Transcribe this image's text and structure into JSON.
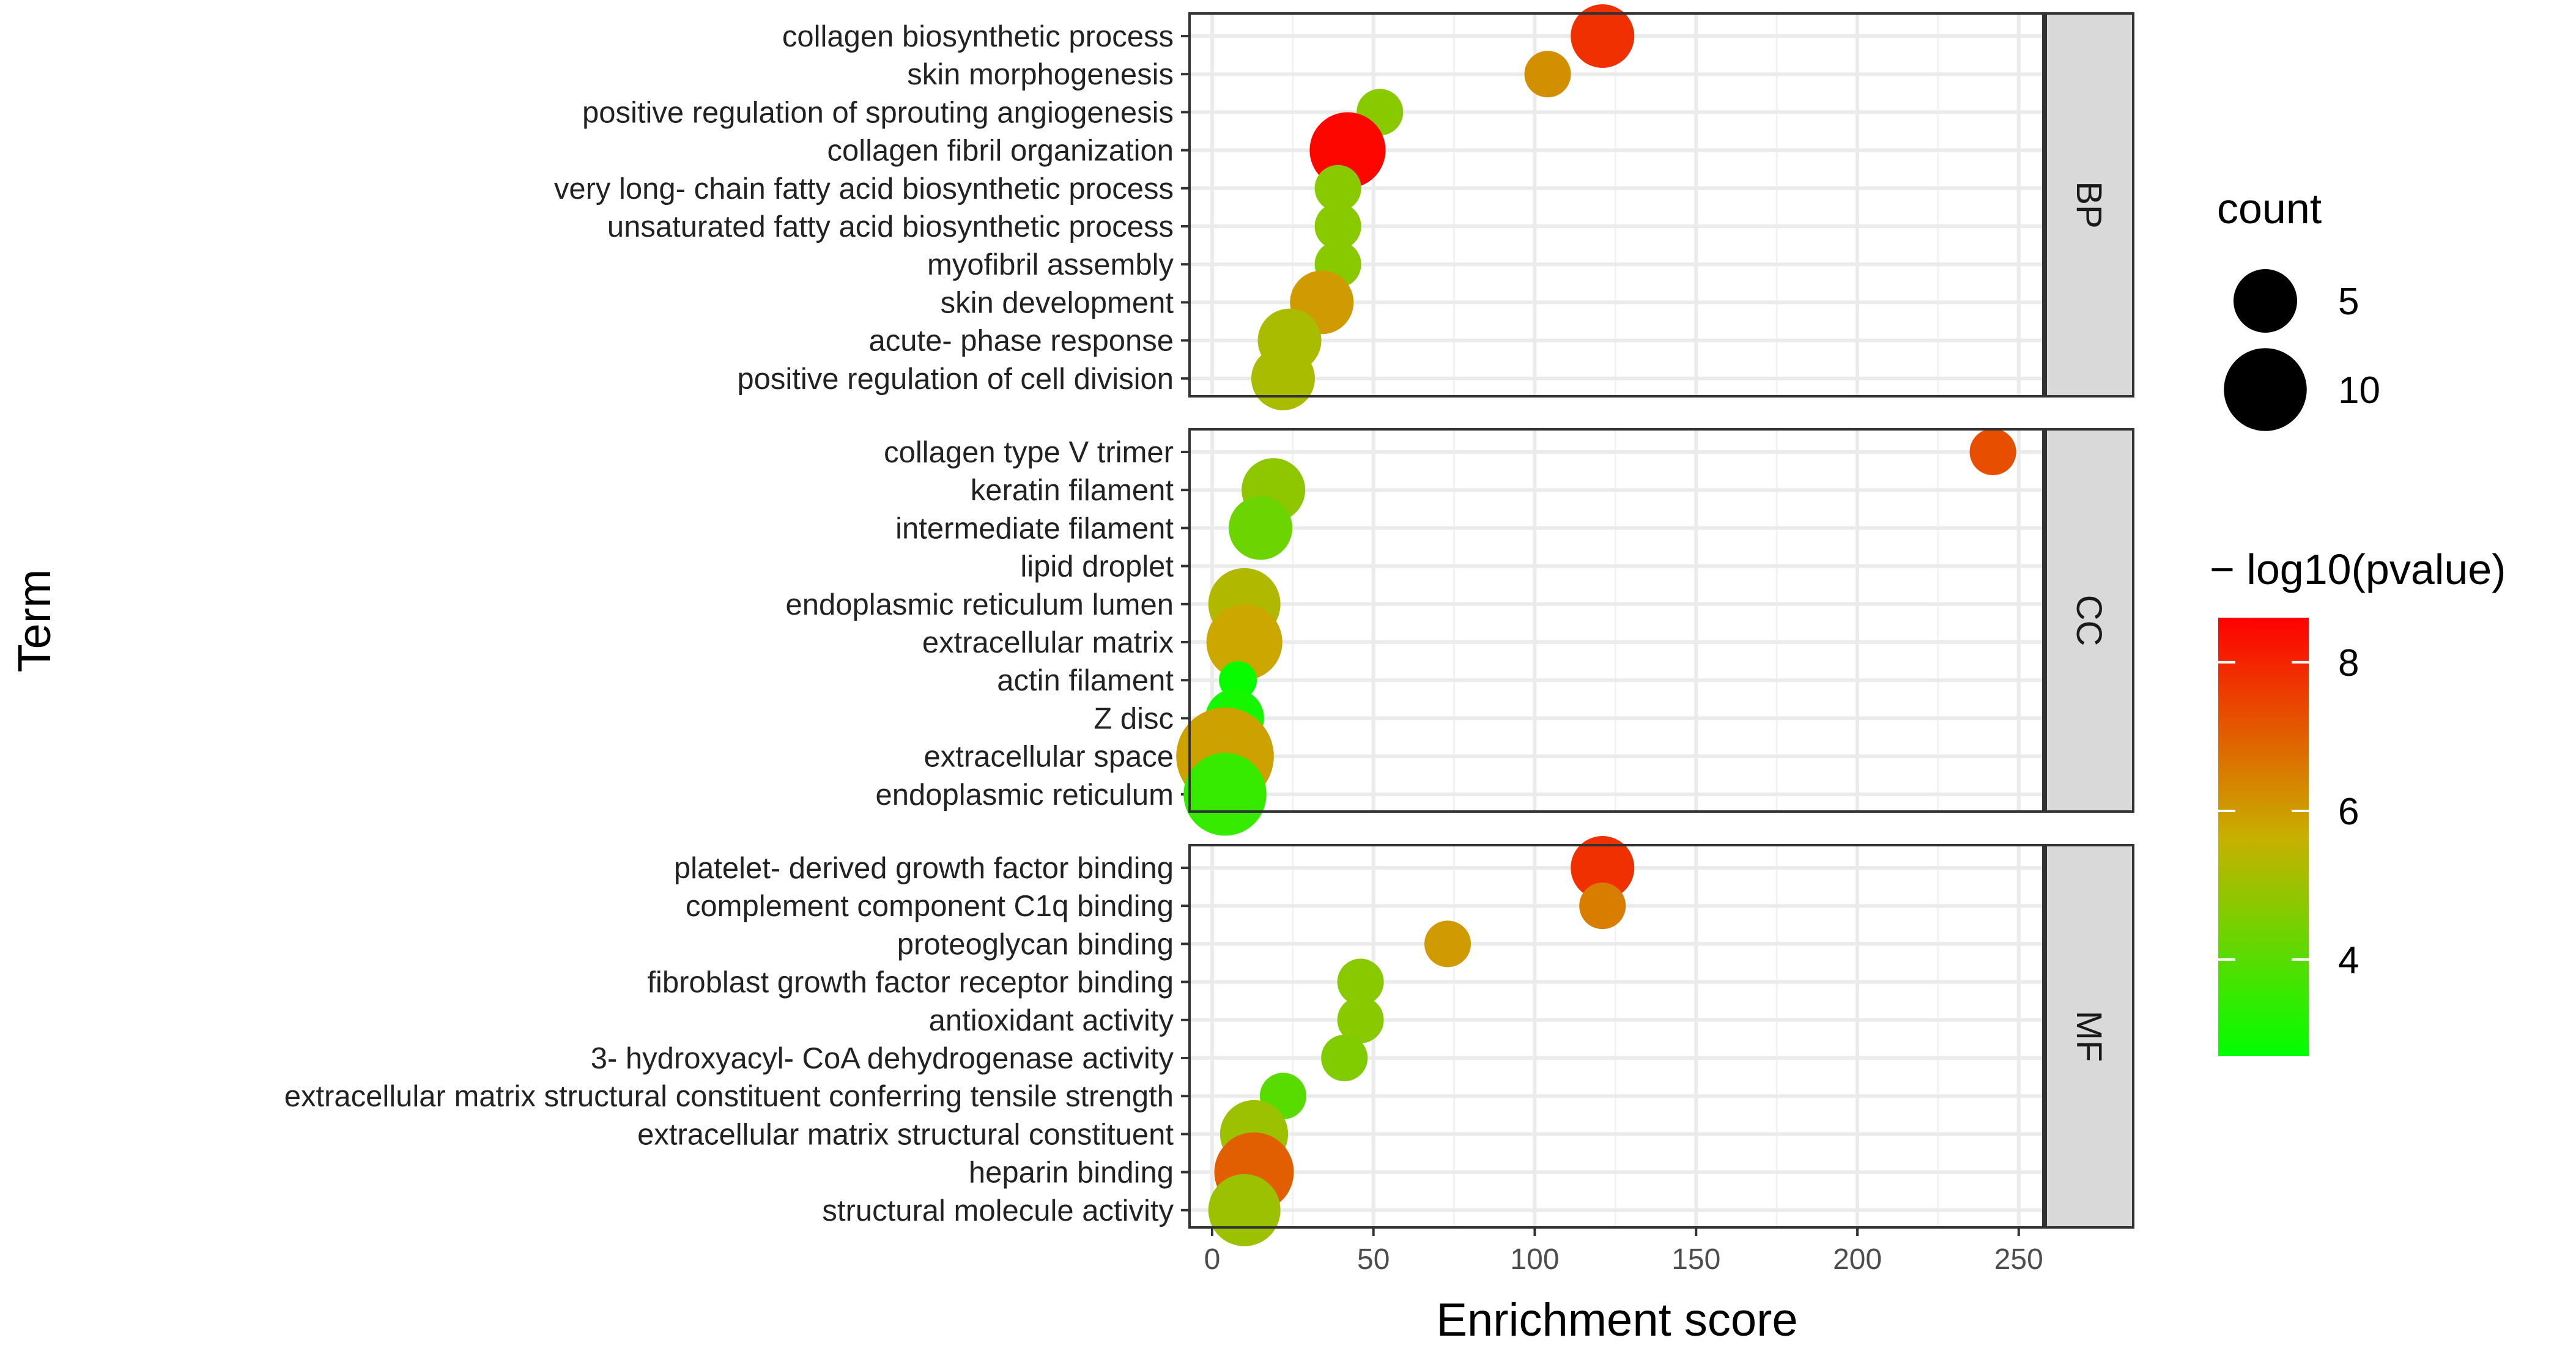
{
  "chart_data": {
    "type": "scatter",
    "xlabel": "Enrichment score",
    "ylabel": "Term",
    "xlim": [
      -7,
      258
    ],
    "x_ticks": [
      0,
      50,
      100,
      150,
      200,
      250
    ],
    "grid": true,
    "facets": [
      {
        "name": "BP",
        "points": [
          {
            "term": "collagen biosynthetic process",
            "x": 121,
            "count": 5,
            "neg_log10_pvalue": 7.8
          },
          {
            "term": "skin morphogenesis",
            "x": 104,
            "count": 2,
            "neg_log10_pvalue": 6.2
          },
          {
            "term": "positive regulation of sprouting angiogenesis",
            "x": 52,
            "count": 2,
            "neg_log10_pvalue": 4.7
          },
          {
            "term": "collagen fibril organization",
            "x": 42,
            "count": 8,
            "neg_log10_pvalue": 8.5
          },
          {
            "term": "very long- chain fatty acid biosynthetic process",
            "x": 39,
            "count": 2,
            "neg_log10_pvalue": 4.7
          },
          {
            "term": "unsaturated fatty acid biosynthetic process",
            "x": 39,
            "count": 2,
            "neg_log10_pvalue": 4.7
          },
          {
            "term": "myofibril assembly",
            "x": 39,
            "count": 2,
            "neg_log10_pvalue": 4.7
          },
          {
            "term": "skin development",
            "x": 34,
            "count": 5,
            "neg_log10_pvalue": 6.0
          },
          {
            "term": "acute- phase response",
            "x": 24,
            "count": 5,
            "neg_log10_pvalue": 5.2
          },
          {
            "term": "positive regulation of cell division",
            "x": 22,
            "count": 5,
            "neg_log10_pvalue": 5.2
          }
        ]
      },
      {
        "name": "CC",
        "points": [
          {
            "term": "collagen type V trimer",
            "x": 242,
            "count": 2,
            "neg_log10_pvalue": 7.3
          },
          {
            "term": "keratin filament",
            "x": 19,
            "count": 5,
            "neg_log10_pvalue": 4.8
          },
          {
            "term": "intermediate filament",
            "x": 15,
            "count": 5,
            "neg_log10_pvalue": 4.3
          },
          {
            "term": "lipid droplet",
            "x": null,
            "count": null,
            "neg_log10_pvalue": null
          },
          {
            "term": "endoplasmic reticulum lumen",
            "x": 10,
            "count": 7,
            "neg_log10_pvalue": 5.3
          },
          {
            "term": "extracellular matrix",
            "x": 10,
            "count": 8,
            "neg_log10_pvalue": 5.8
          },
          {
            "term": "actin filament",
            "x": 8,
            "count": 1,
            "neg_log10_pvalue": 2.8
          },
          {
            "term": "Z disc",
            "x": 7,
            "count": 4,
            "neg_log10_pvalue": 3.0
          },
          {
            "term": "extracellular space",
            "x": 4,
            "count": 15,
            "neg_log10_pvalue": 5.9
          },
          {
            "term": "endoplasmic reticulum",
            "x": 4,
            "count": 10,
            "neg_log10_pvalue": 3.5
          }
        ]
      },
      {
        "name": "MF",
        "points": [
          {
            "term": "platelet- derived growth factor binding",
            "x": 121,
            "count": 5,
            "neg_log10_pvalue": 7.8
          },
          {
            "term": "complement component C1q binding",
            "x": 121,
            "count": 2,
            "neg_log10_pvalue": 6.5
          },
          {
            "term": "proteoglycan binding",
            "x": 73,
            "count": 2,
            "neg_log10_pvalue": 6.0
          },
          {
            "term": "fibroblast growth factor receptor binding",
            "x": 46,
            "count": 2,
            "neg_log10_pvalue": 4.7
          },
          {
            "term": "antioxidant activity",
            "x": 46,
            "count": 2,
            "neg_log10_pvalue": 4.7
          },
          {
            "term": "3- hydroxyacyl- CoA dehydrogenase activity",
            "x": 41,
            "count": 2,
            "neg_log10_pvalue": 4.6
          },
          {
            "term": "extracellular matrix structural constituent conferring tensile strength",
            "x": 22,
            "count": 2,
            "neg_log10_pvalue": 4.0
          },
          {
            "term": "extracellular matrix structural constituent",
            "x": 13,
            "count": 6,
            "neg_log10_pvalue": 5.0
          },
          {
            "term": "heparin binding",
            "x": 13,
            "count": 9,
            "neg_log10_pvalue": 7.0
          },
          {
            "term": "structural molecule activity",
            "x": 10,
            "count": 7,
            "neg_log10_pvalue": 5.0
          }
        ]
      }
    ],
    "legend_size": {
      "title": "count",
      "entries": [
        {
          "label": "5",
          "value": 5
        },
        {
          "label": "10",
          "value": 10
        }
      ]
    },
    "legend_color": {
      "title": "− log10(pvalue)",
      "min": 2.7,
      "max": 8.6,
      "ticks": [
        {
          "label": "4",
          "value": 4
        },
        {
          "label": "6",
          "value": 6
        },
        {
          "label": "8",
          "value": 8
        }
      ],
      "colors": [
        "#00ff00",
        "#c8b000",
        "#ff0000"
      ]
    }
  }
}
